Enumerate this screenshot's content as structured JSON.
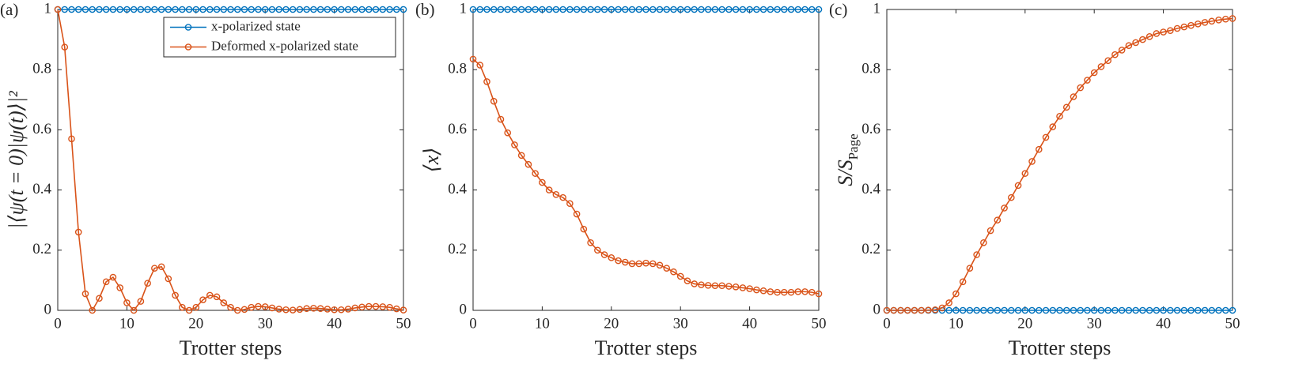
{
  "chart_data": [
    {
      "type": "line",
      "panel_label": "(a)",
      "ylabel": "|⟨ψ(t = 0)|ψ(t)⟩|²",
      "xlabel": "Trotter steps",
      "x": [
        0,
        1,
        2,
        3,
        4,
        5,
        6,
        7,
        8,
        9,
        10,
        11,
        12,
        13,
        14,
        15,
        16,
        17,
        18,
        19,
        20,
        21,
        22,
        23,
        24,
        25,
        26,
        27,
        28,
        29,
        30,
        31,
        32,
        33,
        34,
        35,
        36,
        37,
        38,
        39,
        40,
        41,
        42,
        43,
        44,
        45,
        46,
        47,
        48,
        49,
        50
      ],
      "series": [
        {
          "name": "x-polarized state",
          "color": "#0072BD",
          "values": [
            1,
            1,
            1,
            1,
            1,
            1,
            1,
            1,
            1,
            1,
            1,
            1,
            1,
            1,
            1,
            1,
            1,
            1,
            1,
            1,
            1,
            1,
            1,
            1,
            1,
            1,
            1,
            1,
            1,
            1,
            1,
            1,
            1,
            1,
            1,
            1,
            1,
            1,
            1,
            1,
            1,
            1,
            1,
            1,
            1,
            1,
            1,
            1,
            1,
            1,
            1
          ]
        },
        {
          "name": "Deformed x-polarized state",
          "color": "#D95319",
          "values": [
            1,
            0.875,
            0.57,
            0.26,
            0.055,
            0.0,
            0.04,
            0.095,
            0.11,
            0.075,
            0.025,
            0.0,
            0.03,
            0.09,
            0.14,
            0.145,
            0.105,
            0.05,
            0.01,
            0.0,
            0.01,
            0.035,
            0.05,
            0.045,
            0.025,
            0.01,
            0.0,
            0.003,
            0.01,
            0.013,
            0.012,
            0.008,
            0.004,
            0.002,
            0.001,
            0.003,
            0.006,
            0.007,
            0.006,
            0.004,
            0.002,
            0.002,
            0.004,
            0.008,
            0.011,
            0.013,
            0.013,
            0.012,
            0.01,
            0.005,
            0.001
          ]
        }
      ],
      "xlim": [
        0,
        50
      ],
      "ylim": [
        0,
        1
      ],
      "xticks": [
        0,
        10,
        20,
        30,
        40,
        50
      ],
      "yticks": [
        0,
        0.2,
        0.4,
        0.6,
        0.8,
        1
      ],
      "legend": "upper-right"
    },
    {
      "type": "line",
      "panel_label": "(b)",
      "ylabel": "⟨x⟩",
      "xlabel": "Trotter steps",
      "x": [
        0,
        1,
        2,
        3,
        4,
        5,
        6,
        7,
        8,
        9,
        10,
        11,
        12,
        13,
        14,
        15,
        16,
        17,
        18,
        19,
        20,
        21,
        22,
        23,
        24,
        25,
        26,
        27,
        28,
        29,
        30,
        31,
        32,
        33,
        34,
        35,
        36,
        37,
        38,
        39,
        40,
        41,
        42,
        43,
        44,
        45,
        46,
        47,
        48,
        49,
        50
      ],
      "series": [
        {
          "color": "#0072BD",
          "values": [
            1,
            1,
            1,
            1,
            1,
            1,
            1,
            1,
            1,
            1,
            1,
            1,
            1,
            1,
            1,
            1,
            1,
            1,
            1,
            1,
            1,
            1,
            1,
            1,
            1,
            1,
            1,
            1,
            1,
            1,
            1,
            1,
            1,
            1,
            1,
            1,
            1,
            1,
            1,
            1,
            1,
            1,
            1,
            1,
            1,
            1,
            1,
            1,
            1,
            1,
            1
          ]
        },
        {
          "color": "#D95319",
          "values": [
            0.835,
            0.815,
            0.76,
            0.695,
            0.635,
            0.59,
            0.55,
            0.515,
            0.485,
            0.455,
            0.425,
            0.4,
            0.385,
            0.375,
            0.355,
            0.32,
            0.27,
            0.225,
            0.2,
            0.185,
            0.175,
            0.165,
            0.16,
            0.155,
            0.155,
            0.157,
            0.155,
            0.15,
            0.14,
            0.128,
            0.113,
            0.098,
            0.088,
            0.085,
            0.083,
            0.082,
            0.082,
            0.08,
            0.078,
            0.075,
            0.072,
            0.068,
            0.065,
            0.062,
            0.06,
            0.06,
            0.06,
            0.062,
            0.062,
            0.06,
            0.055
          ]
        }
      ],
      "xlim": [
        0,
        50
      ],
      "ylim": [
        0,
        1
      ],
      "xticks": [
        0,
        10,
        20,
        30,
        40,
        50
      ],
      "yticks": [
        0,
        0.2,
        0.4,
        0.6,
        0.8,
        1
      ]
    },
    {
      "type": "line",
      "panel_label": "(c)",
      "ylabel": "S/S",
      "ylabel_sub": "Page",
      "xlabel": "Trotter steps",
      "x": [
        0,
        1,
        2,
        3,
        4,
        5,
        6,
        7,
        8,
        9,
        10,
        11,
        12,
        13,
        14,
        15,
        16,
        17,
        18,
        19,
        20,
        21,
        22,
        23,
        24,
        25,
        26,
        27,
        28,
        29,
        30,
        31,
        32,
        33,
        34,
        35,
        36,
        37,
        38,
        39,
        40,
        41,
        42,
        43,
        44,
        45,
        46,
        47,
        48,
        49,
        50
      ],
      "series": [
        {
          "color": "#0072BD",
          "values": [
            0,
            0,
            0,
            0,
            0,
            0,
            0,
            0,
            0,
            0,
            0,
            0,
            0,
            0,
            0,
            0,
            0,
            0,
            0,
            0,
            0,
            0,
            0,
            0,
            0,
            0,
            0,
            0,
            0,
            0,
            0,
            0,
            0,
            0,
            0,
            0,
            0,
            0,
            0,
            0,
            0,
            0,
            0,
            0,
            0,
            0,
            0,
            0,
            0,
            0,
            0
          ]
        },
        {
          "color": "#D95319",
          "values": [
            0,
            0,
            0,
            0,
            0,
            0,
            0.001,
            0.002,
            0.008,
            0.025,
            0.055,
            0.095,
            0.14,
            0.185,
            0.225,
            0.265,
            0.3,
            0.34,
            0.375,
            0.415,
            0.455,
            0.495,
            0.535,
            0.575,
            0.61,
            0.645,
            0.675,
            0.71,
            0.74,
            0.765,
            0.79,
            0.81,
            0.83,
            0.85,
            0.865,
            0.88,
            0.89,
            0.9,
            0.91,
            0.92,
            0.925,
            0.93,
            0.937,
            0.942,
            0.947,
            0.952,
            0.957,
            0.961,
            0.965,
            0.968,
            0.97
          ]
        }
      ],
      "xlim": [
        0,
        50
      ],
      "ylim": [
        0,
        1
      ],
      "xticks": [
        0,
        10,
        20,
        30,
        40,
        50
      ],
      "yticks": [
        0,
        0.2,
        0.4,
        0.6,
        0.8,
        1
      ]
    }
  ]
}
